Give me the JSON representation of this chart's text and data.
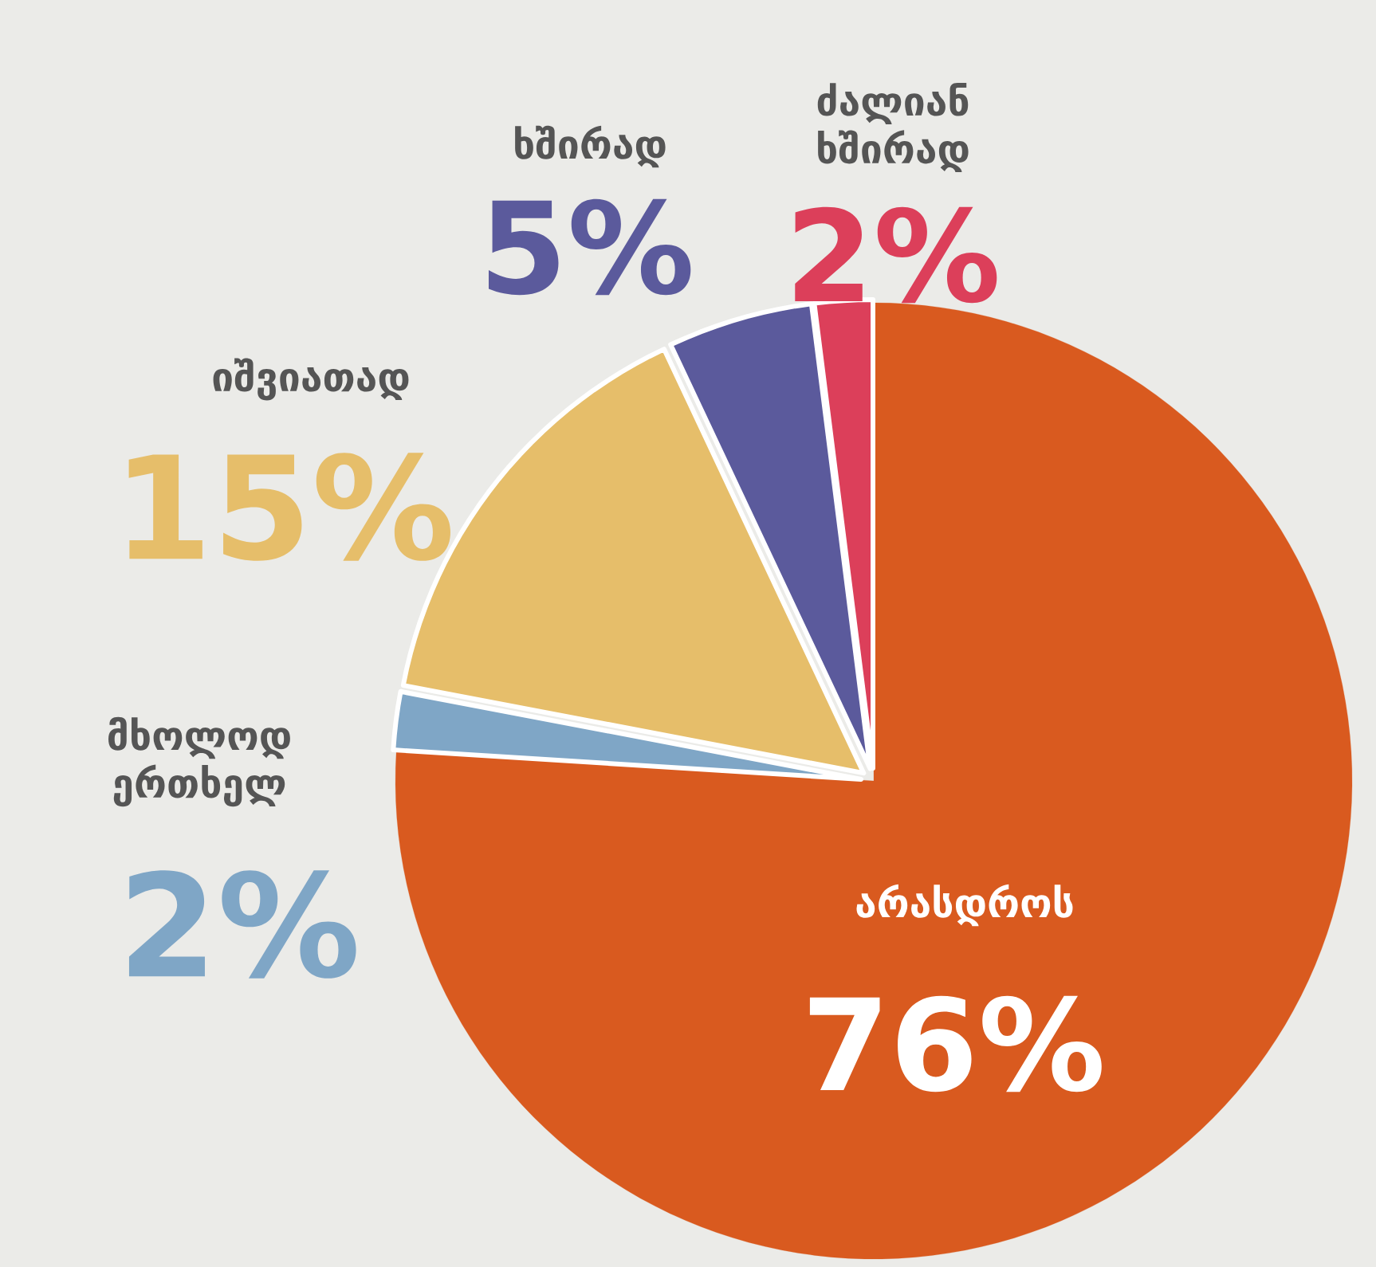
{
  "chart_data": {
    "type": "pie",
    "categories": [
      "არასდროს",
      "მხოლოდ ერთხელ",
      "იშვიათად",
      "ხშირად",
      "ძალიან ხშირად"
    ],
    "values": [
      76,
      2,
      15,
      5,
      2
    ],
    "colors": [
      "#d95a1f",
      "#7fa6c6",
      "#e6be6a",
      "#5b5a9c",
      "#dc3f5a"
    ],
    "value_labels": [
      "76%",
      "2%",
      "15%",
      "5%",
      "2%"
    ]
  }
}
